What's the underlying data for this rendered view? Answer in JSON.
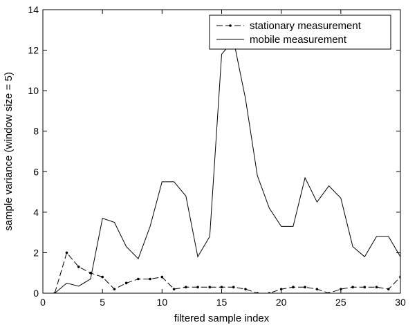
{
  "chart_data": {
    "type": "line",
    "title": "",
    "xlabel": "filtered sample index",
    "ylabel": "sample variance (window size = 5)",
    "xlim": [
      0,
      30
    ],
    "ylim": [
      0,
      14
    ],
    "xticks": [
      0,
      5,
      10,
      15,
      20,
      25,
      30
    ],
    "yticks": [
      0,
      2,
      4,
      6,
      8,
      10,
      12,
      14
    ],
    "grid": false,
    "legend_position": "top-right",
    "series": [
      {
        "name": "stationary measurement",
        "style": "dash-dot-markers",
        "color": "#000000",
        "x": [
          1,
          2,
          3,
          4,
          5,
          6,
          7,
          8,
          9,
          10,
          11,
          12,
          13,
          14,
          15,
          16,
          17,
          18,
          19,
          20,
          21,
          22,
          23,
          24,
          25,
          26,
          27,
          28,
          29,
          30
        ],
        "y": [
          0.0,
          2.0,
          1.3,
          1.0,
          0.8,
          0.2,
          0.5,
          0.7,
          0.7,
          0.8,
          0.2,
          0.3,
          0.3,
          0.3,
          0.3,
          0.3,
          0.2,
          0.0,
          0.0,
          0.2,
          0.3,
          0.3,
          0.2,
          0.0,
          0.2,
          0.3,
          0.3,
          0.3,
          0.2,
          0.8
        ]
      },
      {
        "name": "mobile measurement",
        "style": "solid",
        "color": "#000000",
        "x": [
          1,
          2,
          3,
          4,
          5,
          6,
          7,
          8,
          9,
          10,
          11,
          12,
          13,
          14,
          15,
          16,
          17,
          18,
          19,
          20,
          21,
          22,
          23,
          24,
          25,
          26,
          27,
          28,
          29,
          30
        ],
        "y": [
          0.0,
          0.5,
          0.35,
          0.7,
          3.7,
          3.5,
          2.3,
          1.7,
          3.3,
          5.5,
          5.5,
          4.8,
          1.8,
          2.8,
          11.8,
          12.5,
          9.6,
          5.8,
          4.2,
          3.3,
          3.3,
          5.7,
          4.5,
          5.3,
          4.7,
          2.3,
          1.8,
          2.8,
          2.8,
          1.8
        ]
      }
    ]
  }
}
